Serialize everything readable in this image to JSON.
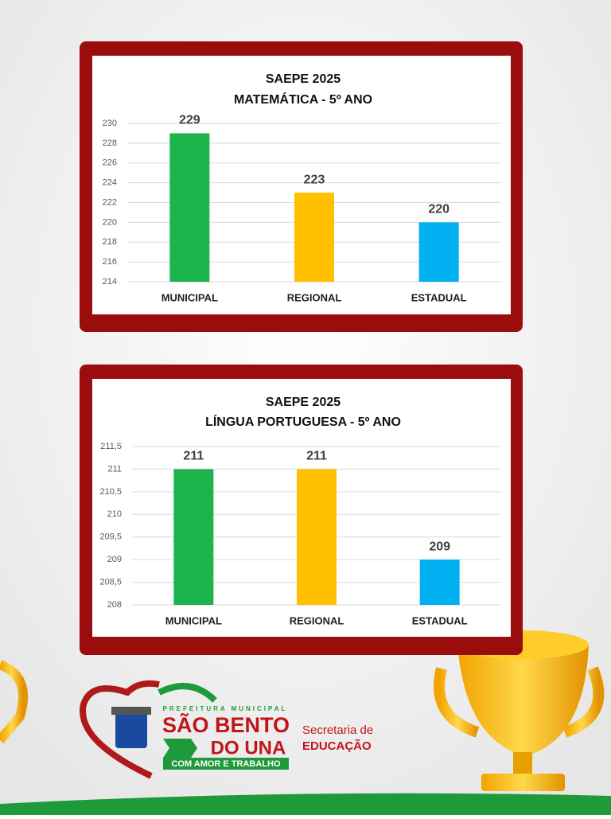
{
  "chart_data": [
    {
      "type": "bar",
      "title": "SAEPE 2025",
      "subtitle": "MATEMÁTICA - 5º ANO",
      "categories": [
        "MUNICIPAL",
        "REGIONAL",
        "ESTADUAL"
      ],
      "values": [
        229,
        223,
        220
      ],
      "colors": [
        "#1db44c",
        "#ffc000",
        "#00b0f0"
      ],
      "ylim": [
        214,
        230
      ],
      "yticks": [
        214,
        216,
        218,
        220,
        222,
        224,
        226,
        228,
        230
      ],
      "grid": true
    },
    {
      "type": "bar",
      "title": "SAEPE 2025",
      "subtitle": "LÍNGUA PORTUGUESA - 5º ANO",
      "categories": [
        "MUNICIPAL",
        "REGIONAL",
        "ESTADUAL"
      ],
      "values": [
        211,
        211,
        209
      ],
      "colors": [
        "#1db44c",
        "#ffc000",
        "#00b0f0"
      ],
      "ylim": [
        208,
        211.5
      ],
      "yticks": [
        208,
        {
          "value": 208.5,
          "label": "208,5"
        },
        209,
        {
          "value": 209.5,
          "label": "209,5"
        },
        210,
        {
          "value": 210.5,
          "label": "210,5"
        },
        211,
        {
          "value": 211.5,
          "label": "211,5"
        }
      ],
      "grid": true
    }
  ],
  "footer": {
    "prefeitura": "PREFEITURA MUNICIPAL",
    "city_line1": "SÃO BENTO",
    "city_line2": "DO UNA",
    "motto": "COM AMOR E TRABALHO",
    "dept_line1": "Secretaria de",
    "dept_line2": "EDUCAÇÃO"
  }
}
